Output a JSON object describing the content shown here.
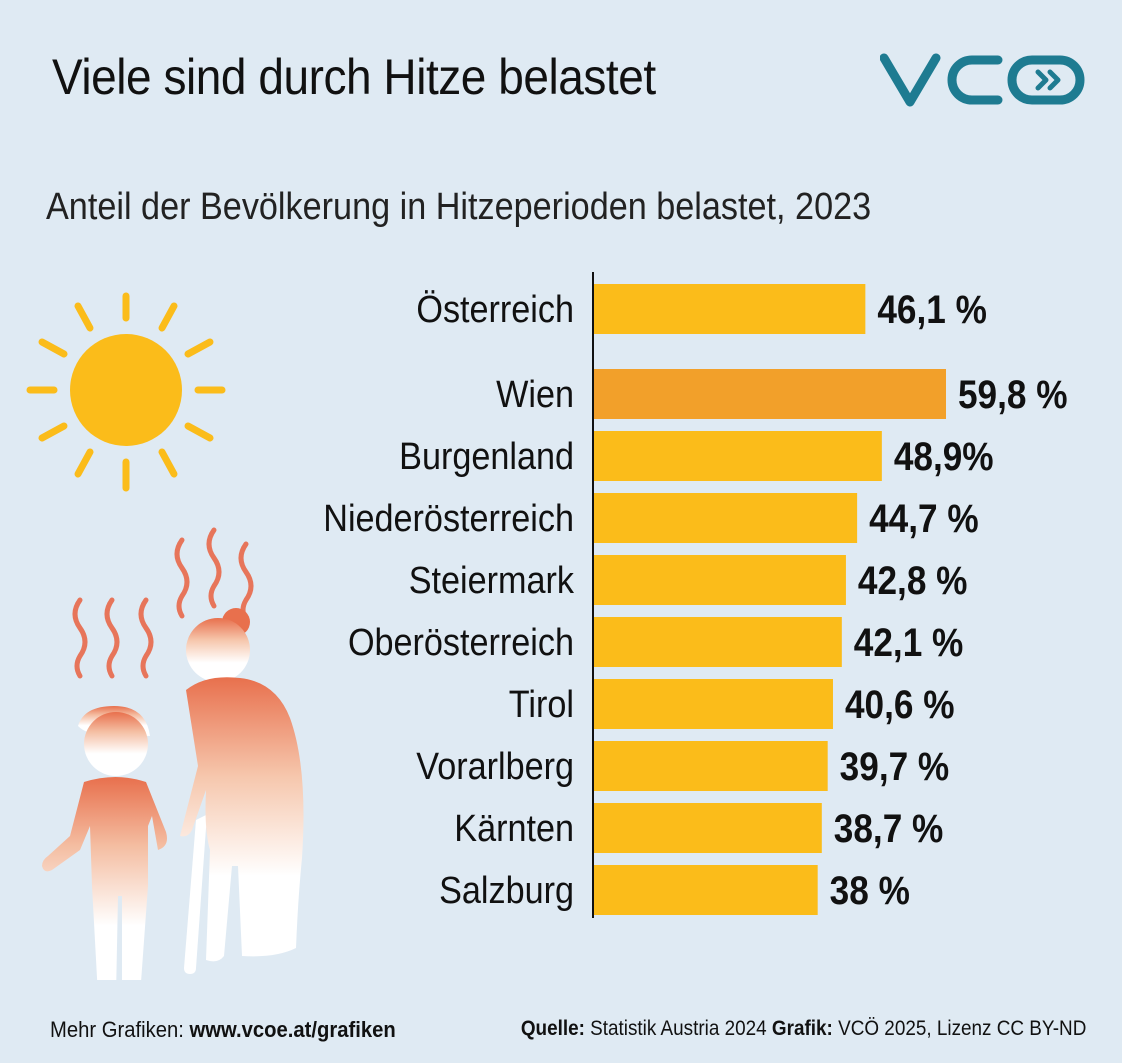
{
  "header": {
    "title": "Viele sind durch Hitze belastet",
    "subtitle": "Anteil der Bevölkerung in Hitzeperioden belastet, 2023",
    "logo_text": "VCÖ"
  },
  "colors": {
    "background": "#dfeaf3",
    "bar": "#fbbc1a",
    "bar_highlight": "#f2a02a",
    "logo": "#1e7b91",
    "sun": "#fbbc1a",
    "heat": "#e7755a"
  },
  "chart_data": {
    "type": "bar",
    "orientation": "horizontal",
    "title": "Anteil der Bevölkerung in Hitzeperioden belastet, 2023",
    "categories": [
      "Österreich",
      "Wien",
      "Burgenland",
      "Niederösterreich",
      "Steiermark",
      "Oberösterreich",
      "Tirol",
      "Vorarlberg",
      "Kärnten",
      "Salzburg"
    ],
    "values": [
      46.1,
      59.8,
      48.9,
      44.7,
      42.8,
      42.1,
      40.6,
      39.7,
      38.7,
      38
    ],
    "value_labels": [
      "46,1 %",
      "59,8 %",
      "48,9%",
      "44,7 %",
      "42,8 %",
      "42,1 %",
      "40,6 %",
      "39,7 %",
      "38,7 %",
      "38 %"
    ],
    "highlight": "Wien",
    "unit": "%",
    "xlim": [
      0,
      60
    ]
  },
  "footer": {
    "more_label": "Mehr Grafiken:",
    "more_link": "www.vcoe.at/grafiken",
    "source_label": "Quelle:",
    "source_value": "Statistik Austria 2024",
    "graphic_label": "Grafik:",
    "graphic_value": "VCÖ 2025, Lizenz CC BY-ND"
  },
  "icons": [
    "sun-icon",
    "heat-wave-icon",
    "child-icon",
    "elderly-woman-icon",
    "vco-logo"
  ]
}
